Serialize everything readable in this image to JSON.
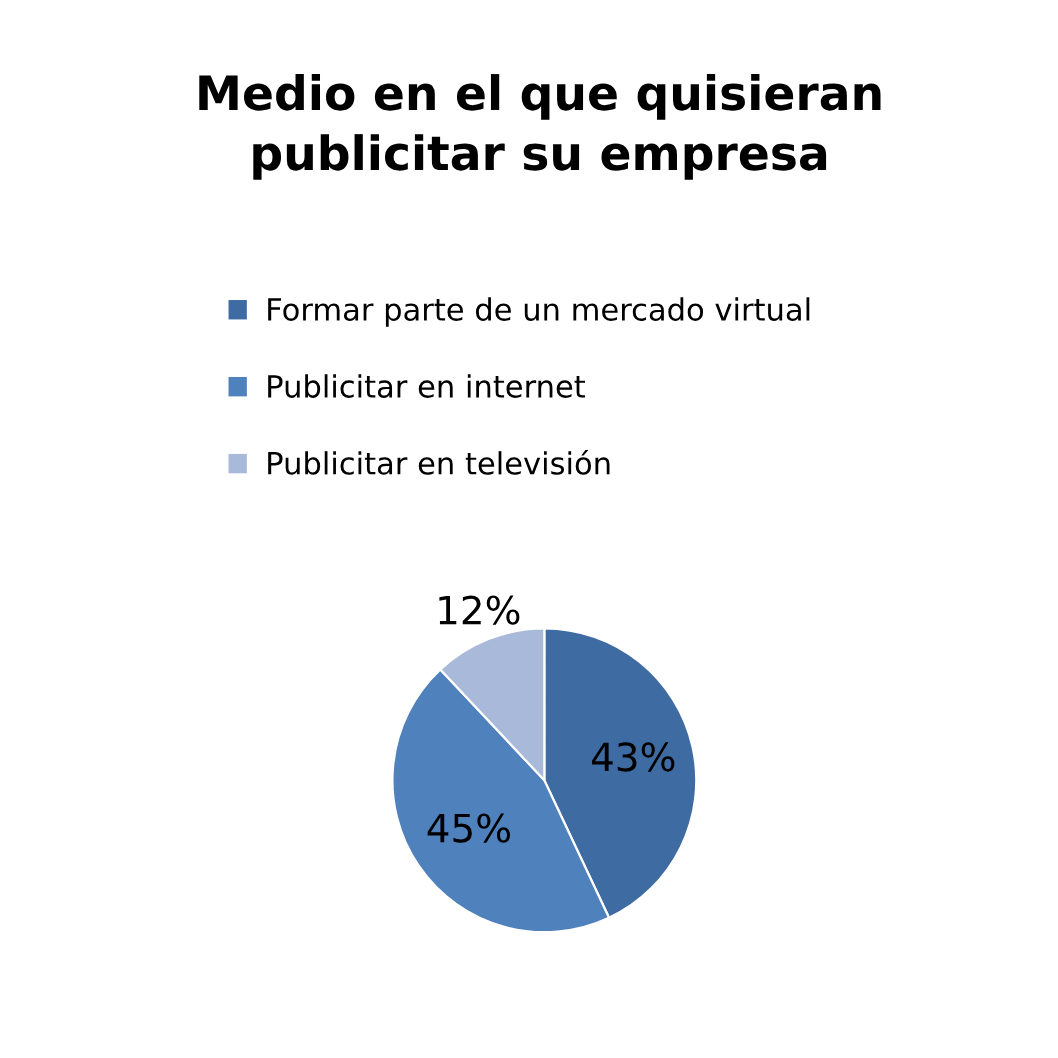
{
  "chart_data": {
    "type": "pie",
    "title": "Medio en el que quisieran\npublicitar su empresa",
    "categories": [
      "Formar parte de un mercado virtual",
      "Publicitar en internet",
      "Publicitar en televisión"
    ],
    "values": [
      43,
      45,
      12
    ],
    "colors": [
      "#3f6ba3",
      "#4f81bd",
      "#a9b9d9"
    ],
    "value_labels": [
      "43%",
      "45%",
      "12%"
    ],
    "legend": "top"
  }
}
